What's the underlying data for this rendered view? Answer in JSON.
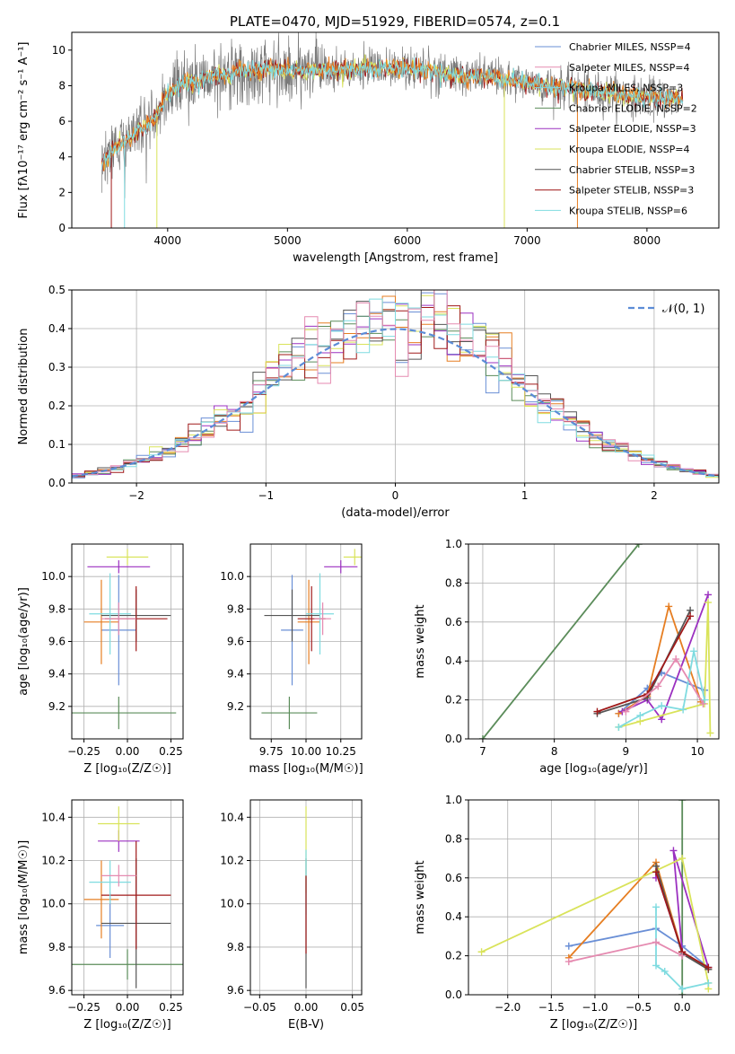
{
  "page": {
    "title": "PLATE=0470, MJD=51929, FIBERID=0574, z=0.1"
  },
  "chart_data": [
    {
      "id": "spectrum",
      "type": "line",
      "title": "PLATE=0470, MJD=51929, FIBERID=0574, z=0.1",
      "xlabel": "wavelength [Angstrom, rest frame]",
      "ylabel": "Flux [fλ10⁻¹⁷ erg cm⁻² s⁻¹ A⁻¹]",
      "xlim": [
        3200,
        8600
      ],
      "ylim": [
        0,
        11
      ],
      "xticks": [
        "4000",
        "5000",
        "6000",
        "7000",
        "8000"
      ],
      "yticks": [
        "0",
        "2",
        "4",
        "6",
        "8",
        "10"
      ],
      "grid": false,
      "legend_position": "top-right",
      "legend": [
        "Chabrier MILES, NSSP=4",
        "Salpeter MILES, NSSP=4",
        "Kroupa MILES, NSSP=3",
        "Chabrier ELODIE, NSSP=2",
        "Salpeter ELODIE, NSSP=3",
        "Kroupa ELODIE, NSSP=4",
        "Chabrier STELIB, NSSP=3",
        "Salpeter STELIB, NSSP=3",
        "Kroupa STELIB, NSSP=6"
      ],
      "legend_colors": [
        "#6a8fd6",
        "#e58ab0",
        "#7fd6e0",
        "#5b8c5a",
        "#9b30c0",
        "#d9e35a",
        "#555555",
        "#a01a1a",
        "#7fdbe0"
      ],
      "continuum": {
        "x": [
          3450,
          3550,
          3700,
          3900,
          4000,
          4100,
          4300,
          4500,
          4700,
          4900,
          5100,
          5300,
          5500,
          5700,
          5900,
          6100,
          6300,
          6500,
          6700,
          6900,
          7100,
          7300,
          7500,
          7700,
          7900,
          8100,
          8300
        ],
        "y": [
          3.6,
          4.4,
          5.1,
          6.2,
          7.6,
          8.0,
          8.4,
          8.7,
          8.9,
          9.0,
          8.8,
          8.9,
          8.9,
          9.0,
          9.0,
          8.9,
          8.7,
          8.5,
          8.5,
          8.3,
          8.1,
          7.9,
          7.7,
          7.6,
          7.4,
          7.3,
          7.2
        ]
      }
    },
    {
      "id": "residuals",
      "type": "line",
      "xlabel": "(data-model)/error",
      "ylabel": "Normed distribution",
      "xlim": [
        -2.5,
        2.5
      ],
      "ylim": [
        0,
        0.5
      ],
      "xticks": [
        "−2",
        "−1",
        "0",
        "1",
        "2"
      ],
      "yticks": [
        "0.0",
        "0.1",
        "0.2",
        "0.3",
        "0.4",
        "0.5"
      ],
      "grid": true,
      "legend_position": "top-right",
      "legend": [
        "𝒩(0, 1)"
      ],
      "normal": {
        "mean": 0,
        "sigma": 1,
        "color": "#5b8cd6"
      },
      "hist_bin_width": 0.1,
      "hist_colors": [
        "#6a8fd6",
        "#e67e22",
        "#5b8c5a",
        "#9b30c0",
        "#d9e35a",
        "#555555",
        "#a01a1a",
        "#7fdbe0",
        "#e58ab0"
      ]
    },
    {
      "id": "z-age",
      "type": "scatter",
      "xlabel": "Z [log₁₀(Z/Z☉)]",
      "ylabel": "age  [log₁₀(age/yr)]",
      "xlim": [
        -0.32,
        0.32
      ],
      "ylim": [
        9.0,
        10.2
      ],
      "xticks": [
        "−0.25",
        "0.00",
        "0.25"
      ],
      "yticks": [
        "9.2",
        "9.4",
        "9.6",
        "9.8",
        "10.0"
      ],
      "grid": true,
      "points": [
        {
          "color": "#6a8fd6",
          "x": -0.05,
          "xerr": 0.1,
          "y": 9.67,
          "yerr": 0.34
        },
        {
          "color": "#e67e22",
          "x": -0.15,
          "xerr": 0.1,
          "y": 9.72,
          "yerr": 0.26
        },
        {
          "color": "#5b8c5a",
          "x": -0.05,
          "xerr": 0.33,
          "y": 9.16,
          "yerr": 0.1
        },
        {
          "color": "#9b30c0",
          "x": -0.05,
          "xerr": 0.18,
          "y": 10.06,
          "yerr": 0.04
        },
        {
          "color": "#d9e35a",
          "x": 0.0,
          "xerr": 0.12,
          "y": 10.12,
          "yerr": 0.05
        },
        {
          "color": "#555555",
          "x": 0.05,
          "xerr": 0.2,
          "y": 9.76,
          "yerr": 0.16
        },
        {
          "color": "#a01a1a",
          "x": 0.05,
          "xerr": 0.18,
          "y": 9.74,
          "yerr": 0.2
        },
        {
          "color": "#7fdbe0",
          "x": -0.1,
          "xerr": 0.12,
          "y": 9.77,
          "yerr": 0.25
        },
        {
          "color": "#e58ab0",
          "x": -0.05,
          "xerr": 0.1,
          "y": 9.74,
          "yerr": 0.1
        }
      ]
    },
    {
      "id": "mass-age",
      "type": "scatter",
      "xlabel": "mass [log₁₀(M/M☉)]",
      "ylabel": "",
      "xlim": [
        9.6,
        10.4
      ],
      "ylim": [
        9.0,
        10.2
      ],
      "xticks": [
        "9.75",
        "10.00",
        "10.25"
      ],
      "yticks": [
        "9.2",
        "9.4",
        "9.6",
        "9.8",
        "10.0"
      ],
      "grid": true,
      "points": [
        {
          "color": "#6a8fd6",
          "x": 9.9,
          "xerr": 0.08,
          "y": 9.67,
          "yerr": 0.34
        },
        {
          "color": "#e67e22",
          "x": 10.02,
          "xerr": 0.08,
          "y": 9.72,
          "yerr": 0.26
        },
        {
          "color": "#5b8c5a",
          "x": 9.88,
          "xerr": 0.2,
          "y": 9.16,
          "yerr": 0.1
        },
        {
          "color": "#9b30c0",
          "x": 10.25,
          "xerr": 0.12,
          "y": 10.06,
          "yerr": 0.04
        },
        {
          "color": "#d9e35a",
          "x": 10.35,
          "xerr": 0.08,
          "y": 10.12,
          "yerr": 0.05
        },
        {
          "color": "#555555",
          "x": 9.9,
          "xerr": 0.2,
          "y": 9.76,
          "yerr": 0.16
        },
        {
          "color": "#a01a1a",
          "x": 10.04,
          "xerr": 0.1,
          "y": 9.74,
          "yerr": 0.2
        },
        {
          "color": "#7fdbe0",
          "x": 10.1,
          "xerr": 0.1,
          "y": 9.77,
          "yerr": 0.25
        },
        {
          "color": "#e58ab0",
          "x": 10.12,
          "xerr": 0.06,
          "y": 9.74,
          "yerr": 0.1
        }
      ]
    },
    {
      "id": "age-weight",
      "type": "line",
      "xlabel": "age  [log₁₀(age/yr)]",
      "ylabel": "mass weight",
      "xlim": [
        6.8,
        10.3
      ],
      "ylim": [
        0,
        1
      ],
      "xticks": [
        "7",
        "8",
        "9",
        "10"
      ],
      "yticks": [
        "0.0",
        "0.2",
        "0.4",
        "0.6",
        "0.8",
        "1.0"
      ],
      "grid": true,
      "series": [
        {
          "color": "#5b8c5a",
          "x": [
            7.0,
            9.18
          ],
          "y": [
            0.0,
            1.0
          ]
        },
        {
          "color": "#6a8fd6",
          "x": [
            8.9,
            9.3,
            9.5,
            10.1
          ],
          "y": [
            0.13,
            0.26,
            0.34,
            0.25
          ]
        },
        {
          "color": "#e67e22",
          "x": [
            8.9,
            9.3,
            9.6,
            10.05
          ],
          "y": [
            0.13,
            0.22,
            0.68,
            0.19
          ]
        },
        {
          "color": "#9b30c0",
          "x": [
            8.95,
            9.3,
            9.5,
            10.15
          ],
          "y": [
            0.14,
            0.2,
            0.1,
            0.74
          ]
        },
        {
          "color": "#d9e35a",
          "x": [
            8.9,
            9.2,
            10.1,
            10.15,
            10.18
          ],
          "y": [
            0.06,
            0.09,
            0.18,
            0.7,
            0.03
          ]
        },
        {
          "color": "#555555",
          "x": [
            8.6,
            9.3,
            9.9
          ],
          "y": [
            0.13,
            0.21,
            0.66
          ]
        },
        {
          "color": "#a01a1a",
          "x": [
            8.6,
            9.3,
            9.9
          ],
          "y": [
            0.14,
            0.23,
            0.63
          ]
        },
        {
          "color": "#7fdbe0",
          "x": [
            8.9,
            9.2,
            9.5,
            9.8,
            9.95,
            10.1
          ],
          "y": [
            0.06,
            0.12,
            0.17,
            0.15,
            0.45,
            0.2
          ]
        },
        {
          "color": "#e58ab0",
          "x": [
            9.0,
            9.45,
            9.7,
            10.08
          ],
          "y": [
            0.14,
            0.27,
            0.41,
            0.18
          ]
        }
      ]
    },
    {
      "id": "z-mass",
      "type": "scatter",
      "xlabel": "Z [log₁₀(Z/Z☉)]",
      "ylabel": "mass [log₁₀(M/M☉)]",
      "xlim": [
        -0.32,
        0.32
      ],
      "ylim": [
        9.58,
        10.48
      ],
      "xticks": [
        "−0.25",
        "0.00",
        "0.25"
      ],
      "yticks": [
        "9.6",
        "9.8",
        "10.0",
        "10.2",
        "10.4"
      ],
      "grid": true,
      "points": [
        {
          "color": "#6a8fd6",
          "x": -0.1,
          "xerr": 0.08,
          "y": 9.9,
          "yerr": 0.15
        },
        {
          "color": "#e67e22",
          "x": -0.15,
          "xerr": 0.1,
          "y": 10.02,
          "yerr": 0.18
        },
        {
          "color": "#5b8c5a",
          "x": 0.0,
          "xerr": 0.32,
          "y": 9.72,
          "yerr": 0.07
        },
        {
          "color": "#9b30c0",
          "x": -0.05,
          "xerr": 0.12,
          "y": 10.29,
          "yerr": 0.05
        },
        {
          "color": "#d9e35a",
          "x": -0.05,
          "xerr": 0.12,
          "y": 10.37,
          "yerr": 0.08
        },
        {
          "color": "#555555",
          "x": 0.05,
          "xerr": 0.2,
          "y": 9.91,
          "yerr": 0.3
        },
        {
          "color": "#a01a1a",
          "x": 0.05,
          "xerr": 0.2,
          "y": 10.04,
          "yerr": 0.25
        },
        {
          "color": "#7fdbe0",
          "x": -0.1,
          "xerr": 0.12,
          "y": 10.1,
          "yerr": 0.1
        },
        {
          "color": "#e58ab0",
          "x": -0.05,
          "xerr": 0.1,
          "y": 10.13,
          "yerr": 0.05
        }
      ]
    },
    {
      "id": "ebv-mass",
      "type": "scatter",
      "xlabel": "E(B-V)",
      "ylabel": "",
      "xlim": [
        -0.06,
        0.06
      ],
      "ylim": [
        9.58,
        10.48
      ],
      "xticks": [
        "−0.05",
        "0.00",
        "0.05"
      ],
      "yticks": [
        "9.6",
        "9.8",
        "10.0",
        "10.2",
        "10.4"
      ],
      "grid": true,
      "points": [
        {
          "color": "#d9e35a",
          "x": 0.0,
          "xerr": 0.0,
          "y": 10.25,
          "yerr": 0.2
        },
        {
          "color": "#555555",
          "x": 0.0,
          "xerr": 0.0,
          "y": 9.91,
          "yerr": 0.3
        },
        {
          "color": "#7fdbe0",
          "x": 0.0,
          "xerr": 0.0,
          "y": 10.1,
          "yerr": 0.15
        },
        {
          "color": "#a01a1a",
          "x": 0.0,
          "xerr": 0.0,
          "y": 9.95,
          "yerr": 0.18
        }
      ]
    },
    {
      "id": "z-weight",
      "type": "line",
      "xlabel": "Z [log₁₀(Z/Z☉)]",
      "ylabel": "mass weight",
      "xlim": [
        -2.45,
        0.42
      ],
      "ylim": [
        0,
        1
      ],
      "xticks": [
        "−2.0",
        "−1.5",
        "−1.0",
        "−0.5",
        "0.0"
      ],
      "yticks": [
        "0.0",
        "0.2",
        "0.4",
        "0.6",
        "0.8",
        "1.0"
      ],
      "grid": true,
      "series": [
        {
          "color": "#5b8c5a",
          "x": [
            0.0,
            0.0
          ],
          "y": [
            0.0,
            1.0
          ]
        },
        {
          "color": "#6a8fd6",
          "x": [
            -1.3,
            -0.3,
            0.0,
            0.3
          ],
          "y": [
            0.25,
            0.34,
            0.25,
            0.14
          ]
        },
        {
          "color": "#e67e22",
          "x": [
            -1.3,
            -0.3,
            0.0,
            0.3
          ],
          "y": [
            0.19,
            0.68,
            0.22,
            0.13
          ]
        },
        {
          "color": "#9b30c0",
          "x": [
            -0.3,
            -0.3,
            0.0,
            -0.1,
            0.3
          ],
          "y": [
            0.6,
            0.63,
            0.22,
            0.74,
            0.14
          ]
        },
        {
          "color": "#d9e35a",
          "x": [
            -2.3,
            0.0,
            0.3,
            0.3
          ],
          "y": [
            0.22,
            0.7,
            0.06,
            0.03
          ]
        },
        {
          "color": "#555555",
          "x": [
            -0.3,
            0.0,
            0.3
          ],
          "y": [
            0.66,
            0.21,
            0.13
          ]
        },
        {
          "color": "#a01a1a",
          "x": [
            -0.3,
            0.0,
            0.3
          ],
          "y": [
            0.63,
            0.22,
            0.14
          ]
        },
        {
          "color": "#7fdbe0",
          "x": [
            -0.3,
            -0.3,
            -0.2,
            0.0,
            0.3
          ],
          "y": [
            0.45,
            0.15,
            0.12,
            0.03,
            0.06
          ]
        },
        {
          "color": "#e58ab0",
          "x": [
            -1.3,
            -0.3,
            0.0
          ],
          "y": [
            0.17,
            0.27,
            0.2
          ]
        }
      ]
    }
  ]
}
